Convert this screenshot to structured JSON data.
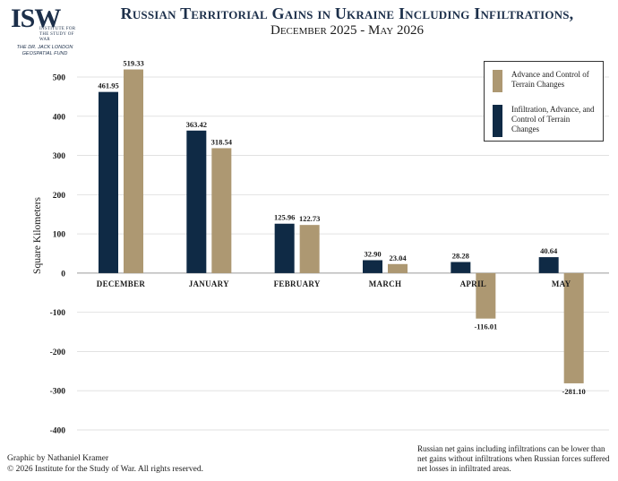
{
  "header": {
    "logo_mark": "ISW",
    "logo_institute": "INSTITUTE FOR THE STUDY OF WAR",
    "logo_fund": "THE DR. JACK LONDON GEOSPATIAL FUND",
    "title": "Russian Territorial Gains in Ukraine Including Infiltrations,",
    "subtitle": "December 2025 - May 2026"
  },
  "footer": {
    "credit_line1": "Graphic by Nathaniel Kramer",
    "credit_line2": "© 2026 Institute for the Study of War. All rights reserved.",
    "note": "Russian net gains including infiltrations can be lower than net gains without infiltrations when Russian forces suffered net losses in infiltrated areas."
  },
  "colors": {
    "navy": "#0f2a45",
    "tan": "#ad9872",
    "grid": "#e2e2e2",
    "text": "#1a1a1a"
  },
  "chart_data": {
    "type": "bar",
    "title": "Russian Territorial Gains in Ukraine Including Infiltrations,",
    "subtitle": "December 2025 - May 2026",
    "ylabel": "Square Kilometers",
    "xlabel": "",
    "ylim": [
      -400,
      500
    ],
    "yticks": [
      500,
      400,
      300,
      200,
      100,
      0,
      -100,
      -200,
      -300,
      -400
    ],
    "ytick_labels": [
      "500",
      "400",
      "300",
      "200",
      "100",
      "0",
      "-100",
      "-200",
      "-300",
      "-400"
    ],
    "grid": true,
    "legend_position": "top-right",
    "categories": [
      "December",
      "January",
      "February",
      "March",
      "April",
      "May"
    ],
    "series": [
      {
        "name": "Infiltration, Advance, and Control of Terrain Changes",
        "color": "#0f2a45",
        "values": [
          461.95,
          363.42,
          125.96,
          32.9,
          28.28,
          40.64
        ],
        "labels": [
          "461.95",
          "363.42",
          "125.96",
          "32.90",
          "28.28",
          "40.64"
        ]
      },
      {
        "name": "Advance and Control of Terrain Changes",
        "color": "#ad9872",
        "values": [
          519.33,
          318.54,
          122.73,
          23.04,
          -116.01,
          -281.1
        ],
        "labels": [
          "519.33",
          "318.54",
          "122.73",
          "23.04",
          "-116.01",
          "-281.10"
        ]
      }
    ],
    "legend": [
      {
        "label": "Advance and Control of Terrain Changes",
        "color": "#ad9872"
      },
      {
        "label": "Infiltration, Advance, and Control of Terrain Changes",
        "color": "#0f2a45"
      }
    ]
  }
}
